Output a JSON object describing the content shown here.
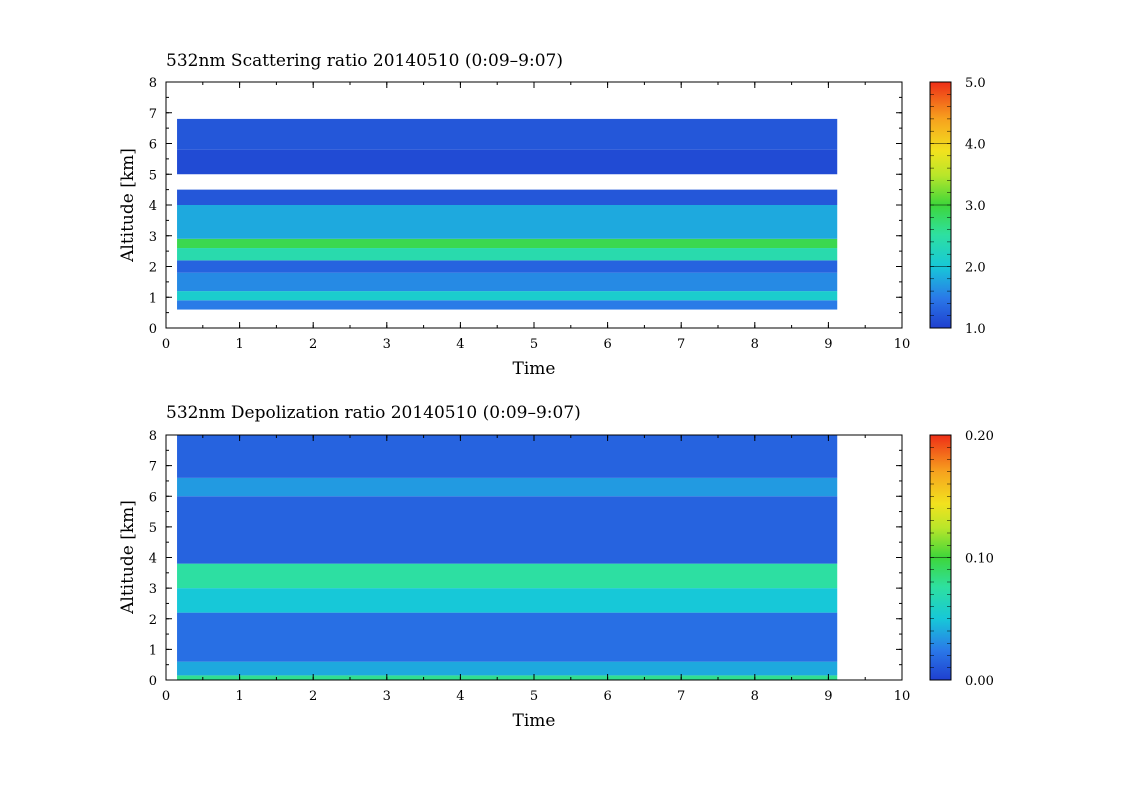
{
  "chart_data": [
    {
      "type": "heatmap",
      "title": "532nm Scattering ratio  20140510 (0:09–9:07)",
      "xlabel": "Time",
      "ylabel": "Altitude [km]",
      "xlim": [
        0,
        10
      ],
      "ylim": [
        0,
        8
      ],
      "x_ticks": [
        "0",
        "1",
        "2",
        "3",
        "4",
        "5",
        "6",
        "7",
        "8",
        "9",
        "10"
      ],
      "y_ticks": [
        "0",
        "1",
        "2",
        "3",
        "4",
        "5",
        "6",
        "7",
        "8"
      ],
      "data_time_range": [
        0.15,
        9.12
      ],
      "colorbar": {
        "min": 1.0,
        "max": 5.0,
        "ticks": [
          "1.0",
          "2.0",
          "3.0",
          "4.0",
          "5.0"
        ],
        "tick_values": [
          1.0,
          2.0,
          3.0,
          4.0,
          5.0
        ]
      },
      "layers": [
        {
          "altitude_km": [
            0.6,
            0.9
          ],
          "value": 1.5
        },
        {
          "altitude_km": [
            0.9,
            1.2
          ],
          "value": 2.1
        },
        {
          "altitude_km": [
            1.2,
            1.8
          ],
          "value": 1.6
        },
        {
          "altitude_km": [
            1.8,
            2.2
          ],
          "value": 1.3
        },
        {
          "altitude_km": [
            2.2,
            2.6
          ],
          "value": 2.4
        },
        {
          "altitude_km": [
            2.6,
            2.9
          ],
          "value": 2.9
        },
        {
          "altitude_km": [
            2.9,
            4.0
          ],
          "value": 1.8
        },
        {
          "altitude_km": [
            4.0,
            4.5
          ],
          "value": 1.2
        },
        {
          "altitude_km": [
            5.0,
            5.8
          ],
          "value": 1.1
        },
        {
          "altitude_km": [
            5.8,
            6.8
          ],
          "value": 1.2
        }
      ]
    },
    {
      "type": "heatmap",
      "title": "532nm Depolization ratio  20140510 (0:09–9:07)",
      "xlabel": "Time",
      "ylabel": "Altitude [km]",
      "xlim": [
        0,
        10
      ],
      "ylim": [
        0,
        8
      ],
      "x_ticks": [
        "0",
        "1",
        "2",
        "3",
        "4",
        "5",
        "6",
        "7",
        "8",
        "9",
        "10"
      ],
      "y_ticks": [
        "0",
        "1",
        "2",
        "3",
        "4",
        "5",
        "6",
        "7",
        "8"
      ],
      "data_time_range": [
        0.15,
        9.12
      ],
      "colorbar": {
        "min": 0.0,
        "max": 0.2,
        "ticks": [
          "0.00",
          "0.10",
          "0.20"
        ],
        "tick_values": [
          0.0,
          0.1,
          0.2
        ]
      },
      "layers": [
        {
          "altitude_km": [
            0.0,
            0.15
          ],
          "value": 0.08
        },
        {
          "altitude_km": [
            0.15,
            0.6
          ],
          "value": 0.04
        },
        {
          "altitude_km": [
            0.6,
            2.2
          ],
          "value": 0.02
        },
        {
          "altitude_km": [
            2.2,
            3.0
          ],
          "value": 0.05
        },
        {
          "altitude_km": [
            3.0,
            3.8
          ],
          "value": 0.075
        },
        {
          "altitude_km": [
            3.8,
            6.0
          ],
          "value": 0.015
        },
        {
          "altitude_km": [
            6.0,
            6.6
          ],
          "value": 0.035
        },
        {
          "altitude_km": [
            6.6,
            8.0
          ],
          "value": 0.015
        }
      ]
    }
  ]
}
